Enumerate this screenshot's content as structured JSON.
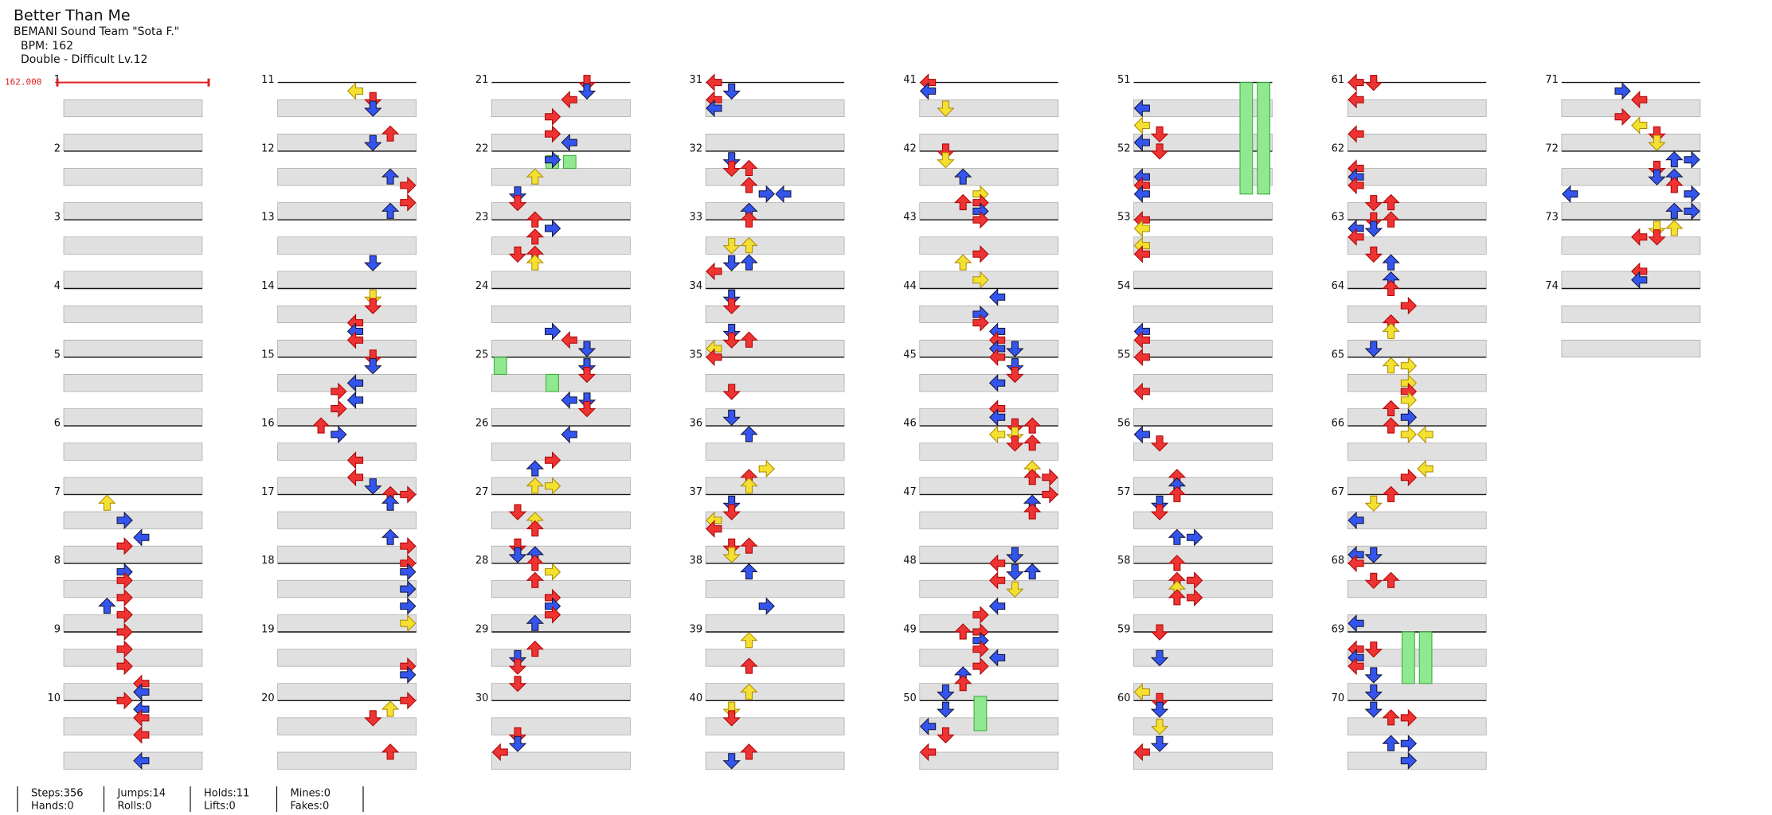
{
  "header": {
    "title": "Better Than Me",
    "artist": "BEMANI Sound Team \"Sota F.\"",
    "bpm": "BPM: 162",
    "difficulty": "Double - Difficult Lv.12"
  },
  "bpm_marker": "162.000",
  "measures": [
    1,
    2,
    3,
    4,
    5,
    6,
    7,
    8,
    9,
    10,
    11,
    12,
    13,
    14,
    15,
    16,
    17,
    18,
    19,
    20,
    21,
    22,
    23,
    24,
    25,
    26,
    27,
    28,
    29,
    30,
    31,
    32,
    33,
    34,
    35,
    36,
    37,
    38,
    39,
    40,
    41,
    42,
    43,
    44,
    45,
    46,
    47,
    48,
    49,
    50,
    51,
    52,
    53,
    54,
    55,
    56,
    57,
    58,
    59,
    60,
    61,
    62,
    63,
    64,
    65,
    66,
    67,
    68,
    69,
    70,
    71,
    72,
    73,
    74
  ],
  "stats": [
    [
      "Steps:356",
      "Hands:0"
    ],
    [
      "Jumps:14",
      "Rolls:0"
    ],
    [
      "Holds:11",
      "Lifts:0"
    ],
    [
      "Mines:0",
      "Fakes:0"
    ]
  ]
}
